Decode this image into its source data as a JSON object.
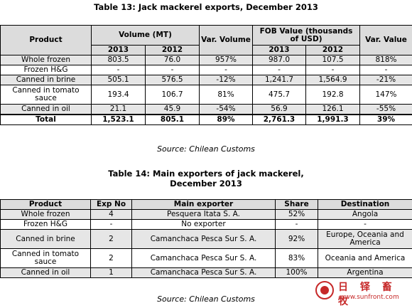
{
  "table13": {
    "title": "Table 13: Jack mackerel exports, December 2013",
    "headers": {
      "product": "Product",
      "volume": "Volume (MT)",
      "var_volume": "Var. Volume",
      "fob": "FOB Value (thousands of USD)",
      "var_value": "Var. Value",
      "y1": "2013",
      "y2": "2012"
    },
    "rows": [
      {
        "product": "Whole frozen",
        "v2013": "803.5",
        "v2012": "76.0",
        "var_vol": "957%",
        "f2013": "987.0",
        "f2012": "107.5",
        "var_val": "818%"
      },
      {
        "product": "Frozen H&G",
        "v2013": "-",
        "v2012": "-",
        "var_vol": "-",
        "f2013": "-",
        "f2012": "-",
        "var_val": "-"
      },
      {
        "product": "Canned in brine",
        "v2013": "505.1",
        "v2012": "576.5",
        "var_vol": "-12%",
        "f2013": "1,241.7",
        "f2012": "1,564.9",
        "var_val": "-21%"
      },
      {
        "product": "Canned in tomato sauce",
        "v2013": "193.4",
        "v2012": "106.7",
        "var_vol": "81%",
        "f2013": "475.7",
        "f2012": "192.8",
        "var_val": "147%"
      },
      {
        "product": "Canned in oil",
        "v2013": "21.1",
        "v2012": "45.9",
        "var_vol": "-54%",
        "f2013": "56.9",
        "f2012": "126.1",
        "var_val": "-55%"
      }
    ],
    "total": {
      "product": "Total",
      "v2013": "1,523.1",
      "v2012": "805.1",
      "var_vol": "89%",
      "f2013": "2,761.3",
      "f2012": "1,991.3",
      "var_val": "39%"
    },
    "source": "Source: Chilean Customs"
  },
  "table14": {
    "title_line1": "Table 14: Main exporters of jack mackerel,",
    "title_line2": "December 2013",
    "headers": {
      "product": "Product",
      "exp_no": "Exp No",
      "main_exporter": "Main exporter",
      "share": "Share",
      "destination": "Destination"
    },
    "rows": [
      {
        "product": "Whole frozen",
        "exp_no": "4",
        "exporter": "Pesquera Itata S. A.",
        "share": "52%",
        "destination": "Angola"
      },
      {
        "product": "Frozen H&G",
        "exp_no": "-",
        "exporter": "No exporter",
        "share": "-",
        "destination": "-"
      },
      {
        "product": "Canned in brine",
        "exp_no": "2",
        "exporter": "Camanchaca Pesca Sur S. A.",
        "share": "92%",
        "destination": "Europe, Oceania and America"
      },
      {
        "product": "Canned in tomato sauce",
        "exp_no": "2",
        "exporter": "Camanchaca Pesca Sur S. A.",
        "share": "83%",
        "destination": "Oceania and America"
      },
      {
        "product": "Canned in oil",
        "exp_no": "1",
        "exporter": "Camanchaca Pesca Sur S. A.",
        "share": "100%",
        "destination": "Argentina"
      }
    ],
    "source": "Source: Chilean Customs"
  },
  "watermark": {
    "chinese": "日 铎 畜 牧",
    "url": "www.sunfront.com"
  }
}
